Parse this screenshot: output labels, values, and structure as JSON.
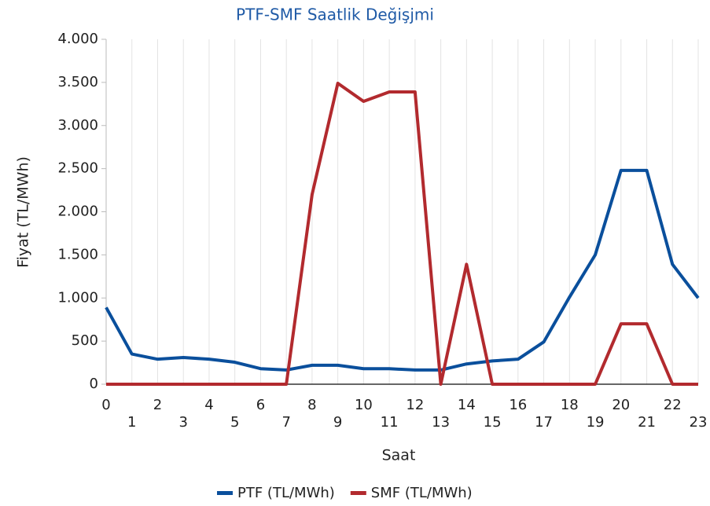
{
  "chart_data": {
    "type": "line",
    "title": "PTF-SMF Saatlik Değişjmi",
    "x_label": "Saat",
    "y_label": "Fiyat (TL/MWh)",
    "x": [
      0,
      1,
      2,
      3,
      4,
      5,
      6,
      7,
      8,
      9,
      10,
      11,
      12,
      13,
      14,
      15,
      16,
      17,
      18,
      19,
      20,
      21,
      22,
      23
    ],
    "xlim": [
      0,
      23
    ],
    "ylim": [
      0,
      4000
    ],
    "yticks": [
      0,
      500,
      {
        "value": 1000,
        "label": "1.000"
      },
      {
        "value": 1500,
        "label": "1.500"
      },
      {
        "value": 2000,
        "label": "2.000"
      },
      {
        "value": 2500,
        "label": "2.500"
      },
      {
        "value": 3000,
        "label": "3.000"
      },
      {
        "value": 3500,
        "label": "3.500"
      },
      {
        "value": 4000,
        "label": "4.000"
      }
    ],
    "grid": true,
    "legend": "bottom",
    "series": [
      {
        "name": "PTF (TL/MWh)",
        "color": "#0a4f9c",
        "values": [
          890,
          350,
          290,
          310,
          290,
          255,
          180,
          165,
          220,
          220,
          180,
          180,
          165,
          165,
          235,
          270,
          290,
          490,
          1010,
          1500,
          2480,
          2480,
          1390,
          1000
        ]
      },
      {
        "name": "SMF (TL/MWh)",
        "color": "#b22a2e",
        "values": [
          0,
          0,
          0,
          0,
          0,
          0,
          0,
          0,
          2200,
          3490,
          3280,
          3390,
          3390,
          0,
          1390,
          0,
          0,
          0,
          0,
          0,
          700,
          700,
          0,
          0
        ]
      }
    ]
  }
}
